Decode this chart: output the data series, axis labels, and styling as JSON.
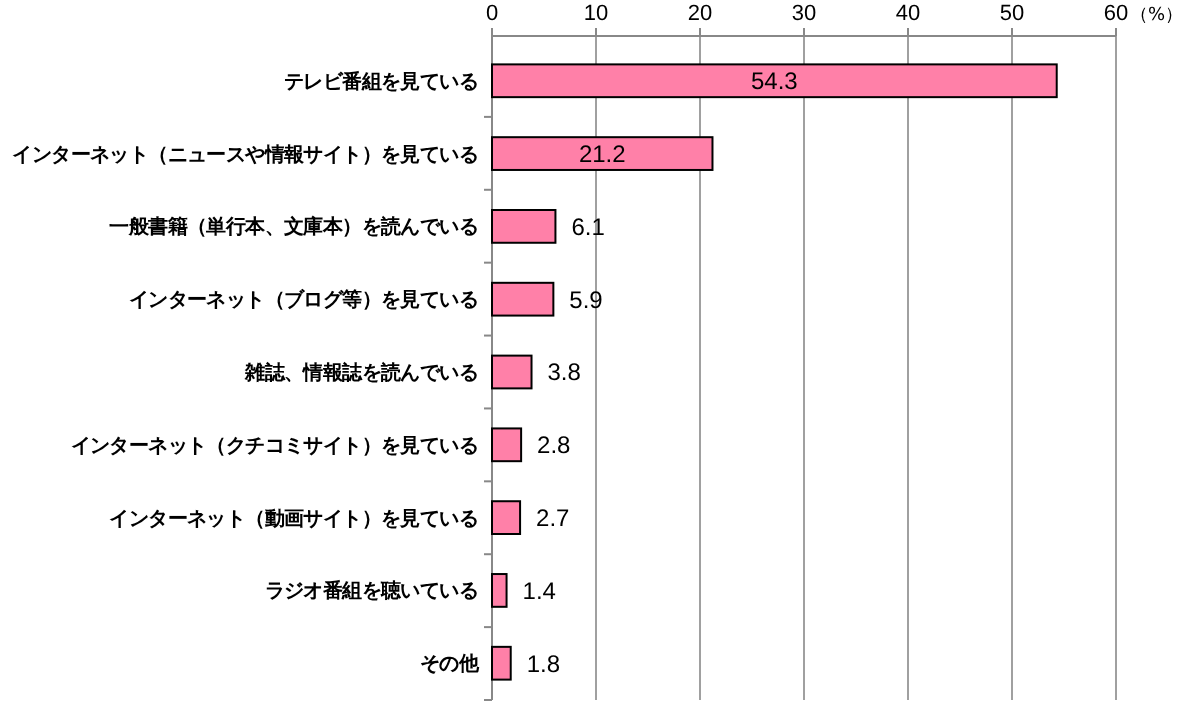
{
  "chart_data": {
    "type": "bar",
    "orientation": "horizontal",
    "xlabel": "（%）",
    "categories": [
      "テレビ番組を見ている",
      "インターネット（ニュースや情報サイト）を見ている",
      "一般書籍（単行本、文庫本）を読んでいる",
      "インターネット（ブログ等）を見ている",
      "雑誌、情報誌を読んでいる",
      "インターネット（クチコミサイト）を見ている",
      "インターネット（動画サイト）を見ている",
      "ラジオ番組を聴いている",
      "その他"
    ],
    "values": [
      54.3,
      21.2,
      6.1,
      5.9,
      3.8,
      2.8,
      2.7,
      1.4,
      1.8
    ],
    "color": "#ff80a8",
    "xlim": [
      0,
      60
    ],
    "xticks": [
      0,
      10,
      20,
      30,
      40,
      50,
      60
    ],
    "grid": "x",
    "data_labels": true
  }
}
